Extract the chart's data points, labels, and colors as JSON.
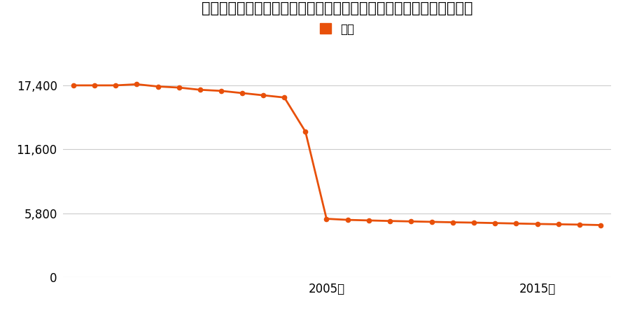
{
  "title": "鳥取県日野郡江府町大字江尾字馬場道ノ下１９４１番１１の地価推移",
  "legend_label": "価格",
  "years": [
    1993,
    1994,
    1995,
    1996,
    1997,
    1998,
    1999,
    2000,
    2001,
    2002,
    2003,
    2004,
    2005,
    2006,
    2007,
    2008,
    2009,
    2010,
    2011,
    2012,
    2013,
    2014,
    2015,
    2016,
    2017,
    2018
  ],
  "values": [
    17400,
    17400,
    17400,
    17500,
    17300,
    17200,
    17000,
    16900,
    16700,
    16500,
    16300,
    13200,
    5300,
    5200,
    5150,
    5100,
    5060,
    5020,
    4980,
    4950,
    4910,
    4870,
    4830,
    4800,
    4770,
    4730
  ],
  "line_color": "#e8500a",
  "marker_color": "#e8500a",
  "background_color": "#ffffff",
  "yticks": [
    0,
    5800,
    11600,
    17400
  ],
  "ytick_labels": [
    "0",
    "5,800",
    "11,600",
    "17,400"
  ],
  "xtick_years": [
    2005,
    2015
  ],
  "xtick_labels": [
    "2005年",
    "2015年"
  ],
  "ylim": [
    0,
    20000
  ],
  "grid_color": "#cccccc",
  "title_fontsize": 15,
  "legend_fontsize": 12
}
